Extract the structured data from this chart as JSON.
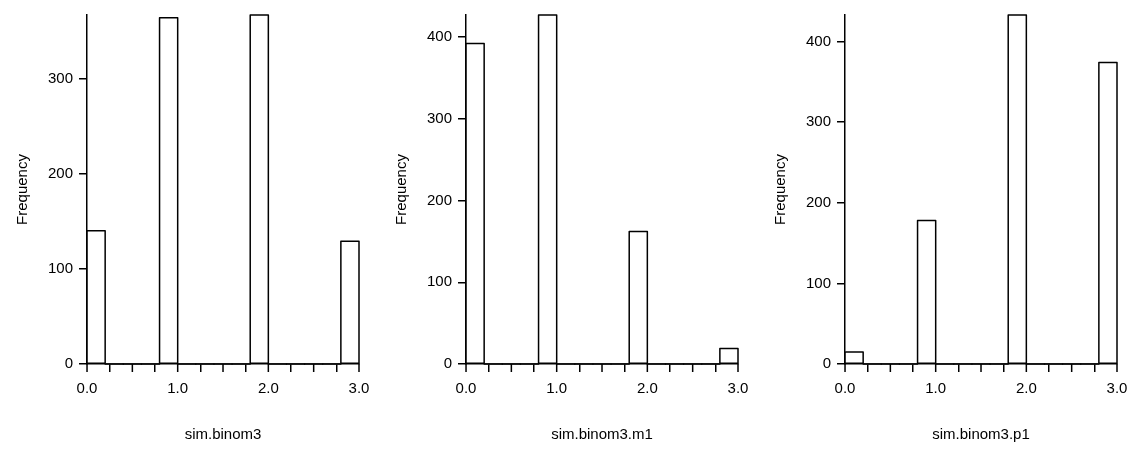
{
  "chart_data": [
    {
      "type": "histogram",
      "xlabel": "sim.binom3",
      "ylabel": "Frequency",
      "color": "#ffffff",
      "bins": [
        0,
        0.2,
        0.4,
        0.6,
        0.8,
        1.0,
        1.2,
        1.4,
        1.6,
        1.8,
        2.0,
        2.2,
        2.4,
        2.6,
        2.8,
        3.0
      ],
      "values": [
        140,
        0,
        0,
        0,
        364,
        0,
        0,
        0,
        0,
        367,
        0,
        0,
        0,
        0,
        129
      ],
      "xlim": [
        0,
        3
      ],
      "xticks": [
        {
          "value": 0,
          "label": "0.0"
        },
        {
          "value": 0.5,
          "label": null
        },
        {
          "value": 1,
          "label": "1.0"
        },
        {
          "value": 1.5,
          "label": null
        },
        {
          "value": 2,
          "label": "2.0"
        },
        {
          "value": 2.5,
          "label": null
        },
        {
          "value": 3,
          "label": "3.0"
        }
      ],
      "ylim": [
        0,
        367
      ],
      "yticks": [
        0,
        100,
        200,
        300
      ],
      "grid": false,
      "legend": false
    },
    {
      "type": "histogram",
      "xlabel": "sim.binom3.m1",
      "ylabel": "Frequency",
      "color": "#ffffff",
      "bins": [
        0,
        0.2,
        0.4,
        0.6,
        0.8,
        1.0,
        1.2,
        1.4,
        1.6,
        1.8,
        2.0,
        2.2,
        2.4,
        2.6,
        2.8,
        3.0
      ],
      "values": [
        392,
        0,
        0,
        0,
        427,
        0,
        0,
        0,
        0,
        162,
        0,
        0,
        0,
        0,
        19
      ],
      "xlim": [
        0,
        3
      ],
      "xticks": [
        {
          "value": 0,
          "label": "0.0"
        },
        {
          "value": 0.5,
          "label": null
        },
        {
          "value": 1,
          "label": "1.0"
        },
        {
          "value": 1.5,
          "label": null
        },
        {
          "value": 2,
          "label": "2.0"
        },
        {
          "value": 2.5,
          "label": null
        },
        {
          "value": 3,
          "label": "3.0"
        }
      ],
      "ylim": [
        0,
        427
      ],
      "yticks": [
        0,
        100,
        200,
        300,
        400
      ],
      "grid": false,
      "legend": false
    },
    {
      "type": "histogram",
      "xlabel": "sim.binom3.p1",
      "ylabel": "Frequency",
      "color": "#ffffff",
      "bins": [
        0,
        0.2,
        0.4,
        0.6,
        0.8,
        1.0,
        1.2,
        1.4,
        1.6,
        1.8,
        2.0,
        2.2,
        2.4,
        2.6,
        2.8,
        3.0
      ],
      "values": [
        15,
        0,
        0,
        0,
        178,
        0,
        0,
        0,
        0,
        433,
        0,
        0,
        0,
        0,
        374
      ],
      "xlim": [
        0,
        3
      ],
      "xticks": [
        {
          "value": 0,
          "label": "0.0"
        },
        {
          "value": 0.5,
          "label": null
        },
        {
          "value": 1,
          "label": "1.0"
        },
        {
          "value": 1.5,
          "label": null
        },
        {
          "value": 2,
          "label": "2.0"
        },
        {
          "value": 2.5,
          "label": null
        },
        {
          "value": 3,
          "label": "3.0"
        }
      ],
      "ylim": [
        0,
        433
      ],
      "yticks": [
        0,
        100,
        200,
        300,
        400
      ],
      "grid": false,
      "legend": false
    }
  ]
}
